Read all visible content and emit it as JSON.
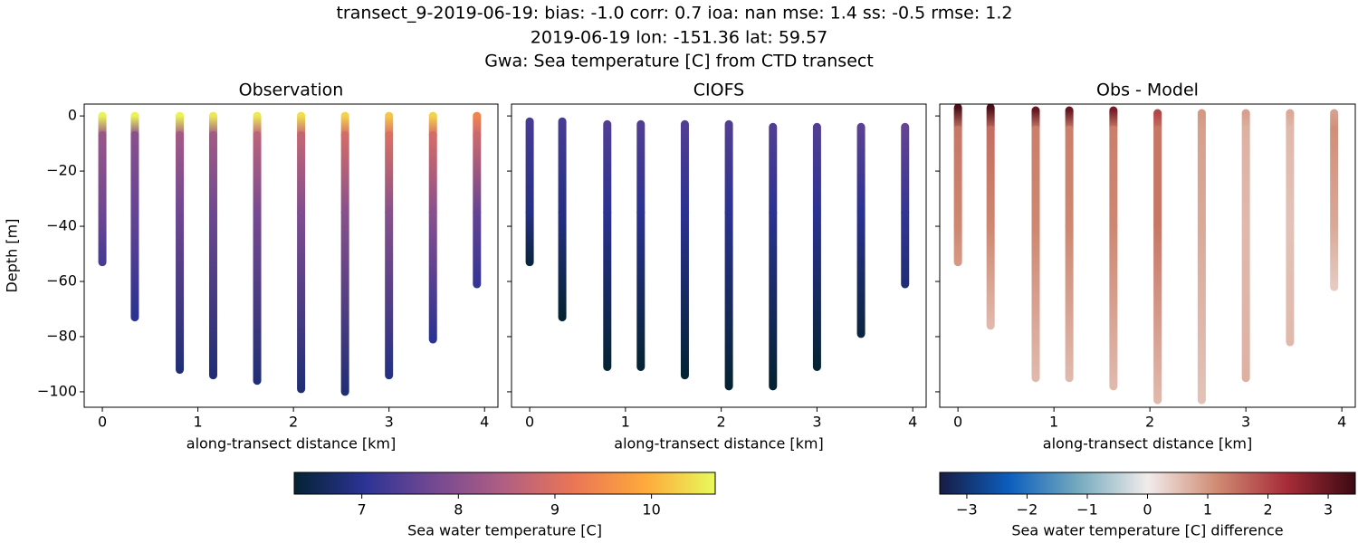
{
  "figure": {
    "title": [
      "transect_9-2019-06-19: bias: -1.0  corr: 0.7  ioa: nan  mse: 1.4  ss: -0.5  rmse: 1.2",
      "2019-06-19 lon: -151.36 lat: 59.57",
      "Gwa: Sea temperature [C] from CTD transect"
    ]
  },
  "chart_data": [
    {
      "type": "scatter",
      "title": "Observation",
      "xlabel": "along-transect distance [km]",
      "ylabel": "Depth [m]",
      "ytick_labels": true,
      "xlim": [
        -0.19,
        4.14
      ],
      "ylim": [
        -105.6,
        4.3
      ],
      "xticks": [
        0,
        1,
        2,
        3,
        4
      ],
      "yticks": [
        0,
        {
          "value": -20,
          "label": "−20"
        },
        {
          "value": -40,
          "label": "−40"
        },
        {
          "value": -60,
          "label": "−60"
        },
        {
          "value": -80,
          "label": "−80"
        },
        {
          "value": -100,
          "label": "−100"
        }
      ],
      "clim": [
        6.3,
        10.66
      ],
      "colormap": [
        "#042333",
        "#2c3395",
        "#744992",
        "#b15f82",
        "#eb7655",
        "#fea93c",
        "#e8fa5b"
      ],
      "casts": [
        {
          "x": 0,
          "depth": [
            0,
            -7,
            -35,
            -53
          ],
          "values": [
            10.6,
            8.2,
            7.7,
            7.3
          ]
        },
        {
          "x": 0.34,
          "depth": [
            0,
            -7,
            -35,
            -73
          ],
          "values": [
            10.6,
            8.0,
            7.6,
            7.0
          ]
        },
        {
          "x": 0.81,
          "depth": [
            0,
            -7,
            -35,
            -92
          ],
          "values": [
            10.6,
            8.3,
            7.7,
            6.8
          ]
        },
        {
          "x": 1.16,
          "depth": [
            0,
            -7,
            -35,
            -94
          ],
          "values": [
            10.5,
            8.3,
            7.7,
            6.8
          ]
        },
        {
          "x": 1.62,
          "depth": [
            0,
            -7,
            -35,
            -96
          ],
          "values": [
            10.5,
            8.6,
            7.8,
            6.8
          ]
        },
        {
          "x": 2.08,
          "depth": [
            0,
            -7,
            -35,
            -99
          ],
          "values": [
            10.4,
            8.7,
            7.9,
            6.8
          ]
        },
        {
          "x": 2.54,
          "depth": [
            0,
            -7,
            -35,
            -100
          ],
          "values": [
            10.3,
            8.9,
            8.0,
            6.8
          ]
        },
        {
          "x": 3.0,
          "depth": [
            0,
            -7,
            -35,
            -94
          ],
          "values": [
            10.2,
            9.0,
            8.0,
            6.9
          ]
        },
        {
          "x": 3.46,
          "depth": [
            0,
            -7,
            -35,
            -81
          ],
          "values": [
            10.3,
            8.9,
            8.0,
            7.0
          ]
        },
        {
          "x": 3.92,
          "depth": [
            0,
            -7,
            -35,
            -61
          ],
          "values": [
            9.4,
            8.8,
            7.6,
            7.1
          ]
        }
      ]
    },
    {
      "type": "scatter",
      "title": "CIOFS",
      "xlabel": "along-transect distance [km]",
      "ytick_labels": false,
      "xlim": [
        -0.19,
        4.14
      ],
      "ylim": [
        -105.6,
        4.3
      ],
      "xticks": [
        0,
        1,
        2,
        3,
        4
      ],
      "yticks": [
        0,
        -20,
        -40,
        -60,
        -80,
        -100
      ],
      "clim": [
        6.3,
        10.66
      ],
      "colormap": [
        "#042333",
        "#2c3395",
        "#744992",
        "#b15f82",
        "#eb7655",
        "#fea93c",
        "#e8fa5b"
      ],
      "casts": [
        {
          "x": 0,
          "depth": [
            -2,
            -35,
            -53
          ],
          "values": [
            7.3,
            6.9,
            6.4
          ]
        },
        {
          "x": 0.34,
          "depth": [
            -2,
            -35,
            -73
          ],
          "values": [
            7.3,
            6.9,
            6.3
          ]
        },
        {
          "x": 0.81,
          "depth": [
            -3,
            -35,
            -91
          ],
          "values": [
            7.4,
            7.0,
            6.3
          ]
        },
        {
          "x": 1.16,
          "depth": [
            -3,
            -35,
            -91
          ],
          "values": [
            7.4,
            7.0,
            6.3
          ]
        },
        {
          "x": 1.62,
          "depth": [
            -3,
            -35,
            -94
          ],
          "values": [
            7.4,
            7.0,
            6.3
          ]
        },
        {
          "x": 2.08,
          "depth": [
            -3,
            -35,
            -98
          ],
          "values": [
            7.4,
            7.0,
            6.3
          ]
        },
        {
          "x": 2.54,
          "depth": [
            -4,
            -35,
            -98
          ],
          "values": [
            7.4,
            7.0,
            6.3
          ]
        },
        {
          "x": 3.0,
          "depth": [
            -4,
            -35,
            -91
          ],
          "values": [
            7.4,
            7.0,
            6.3
          ]
        },
        {
          "x": 3.46,
          "depth": [
            -4,
            -35,
            -79
          ],
          "values": [
            7.5,
            7.0,
            6.4
          ]
        },
        {
          "x": 3.92,
          "depth": [
            -4,
            -35,
            -61
          ],
          "values": [
            7.6,
            7.1,
            6.8
          ]
        }
      ]
    },
    {
      "type": "scatter",
      "title": "Obs - Model",
      "xlabel": "along-transect distance [km]",
      "ytick_labels": false,
      "xlim": [
        -0.19,
        4.14
      ],
      "ylim": [
        -105.6,
        4.3
      ],
      "xticks": [
        0,
        1,
        2,
        3,
        4
      ],
      "yticks": [
        0,
        -20,
        -40,
        -60,
        -80,
        -100
      ],
      "clim": [
        -3.45,
        3.45
      ],
      "colormap": [
        "#181c43",
        "#0c5ebe",
        "#75aabe",
        "#f1eceb",
        "#d08b73",
        "#a72d39",
        "#3c0912"
      ],
      "casts": [
        {
          "x": 0,
          "depth": [
            3,
            -5,
            -40,
            -53
          ],
          "values": [
            3.3,
            1.4,
            1.2,
            1.0
          ]
        },
        {
          "x": 0.34,
          "depth": [
            3,
            -5,
            -40,
            -76
          ],
          "values": [
            3.3,
            1.5,
            1.2,
            0.6
          ]
        },
        {
          "x": 0.81,
          "depth": [
            2,
            -5,
            -40,
            -95
          ],
          "values": [
            3.0,
            1.3,
            1.2,
            0.6
          ]
        },
        {
          "x": 1.16,
          "depth": [
            2,
            -5,
            -40,
            -95
          ],
          "values": [
            3.0,
            1.3,
            1.2,
            0.6
          ]
        },
        {
          "x": 1.62,
          "depth": [
            2,
            -5,
            -40,
            -98
          ],
          "values": [
            2.8,
            1.3,
            1.2,
            0.6
          ]
        },
        {
          "x": 2.08,
          "depth": [
            1,
            -5,
            -40,
            -103
          ],
          "values": [
            2.0,
            1.4,
            1.4,
            0.6
          ]
        },
        {
          "x": 2.54,
          "depth": [
            1,
            -5,
            -40,
            -103
          ],
          "values": [
            1.0,
            0.9,
            0.8,
            0.5
          ]
        },
        {
          "x": 3.0,
          "depth": [
            1,
            -5,
            -40,
            -95
          ],
          "values": [
            0.9,
            0.7,
            0.6,
            0.7
          ]
        },
        {
          "x": 3.46,
          "depth": [
            1,
            -5,
            -40,
            -82
          ],
          "values": [
            0.8,
            0.6,
            0.5,
            0.6
          ]
        },
        {
          "x": 3.92,
          "depth": [
            1,
            -5,
            -40,
            -62
          ],
          "values": [
            0.9,
            1.1,
            0.8,
            0.4
          ]
        }
      ]
    },
    {
      "type": "colorbar",
      "label": "Sea water temperature [C]",
      "xlim": [
        6.3,
        10.66
      ],
      "xticks": [
        7,
        8,
        9,
        10
      ],
      "colormap": [
        "#042333",
        "#2c3395",
        "#744992",
        "#b15f82",
        "#eb7655",
        "#fea93c",
        "#e8fa5b"
      ]
    },
    {
      "type": "colorbar",
      "label": "Sea water temperature [C] difference",
      "xlim": [
        -3.45,
        3.45
      ],
      "xticks": [
        {
          "value": -3,
          "label": "−3"
        },
        {
          "value": -2,
          "label": "−2"
        },
        {
          "value": -1,
          "label": "−1"
        },
        0,
        1,
        2,
        3
      ],
      "colormap": [
        "#181c43",
        "#0c5ebe",
        "#75aabe",
        "#f1eceb",
        "#d08b73",
        "#a72d39",
        "#3c0912"
      ]
    }
  ]
}
